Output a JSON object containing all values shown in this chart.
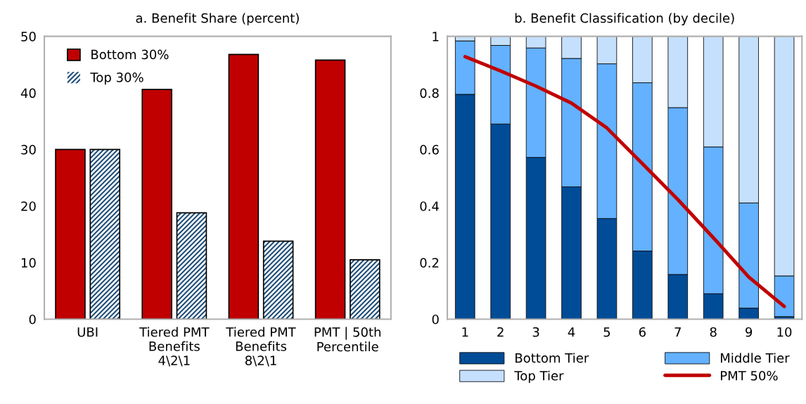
{
  "chart_data": [
    {
      "type": "bar",
      "title": "a. Benefit Share (percent)",
      "categories": [
        "UBI",
        "Tiered PMT\nBenefits\n4\\2\\1",
        "Tiered PMT\nBenefits\n8\\2\\1",
        "PMT | 50th\nPercentile"
      ],
      "series": [
        {
          "name": "Bottom 30%",
          "color": "#c00000",
          "values": [
            30,
            40.6,
            46.8,
            45.8
          ]
        },
        {
          "name": "Top 30%",
          "color": "#1f4e79",
          "values": [
            30,
            18.8,
            13.8,
            10.5
          ]
        }
      ],
      "ylim": [
        0,
        50
      ],
      "yticks": [
        0,
        10,
        20,
        30,
        40,
        50
      ],
      "legend": "top left",
      "grid": false
    },
    {
      "type": "bar",
      "stacked": true,
      "title": "b. Benefit Classification (by decile)",
      "categories": [
        "1",
        "2",
        "3",
        "4",
        "5",
        "6",
        "7",
        "8",
        "9",
        "10"
      ],
      "series": [
        {
          "name": "Bottom Tier",
          "color": "#004c97",
          "values": [
            0.795,
            0.69,
            0.572,
            0.468,
            0.356,
            0.241,
            0.158,
            0.09,
            0.039,
            0.009
          ]
        },
        {
          "name": "Middle Tier",
          "color": "#63b1ff",
          "values": [
            0.189,
            0.278,
            0.387,
            0.454,
            0.547,
            0.595,
            0.59,
            0.519,
            0.372,
            0.144
          ]
        },
        {
          "name": "Top Tier",
          "color": "#c5e0fd",
          "values": [
            0.016,
            0.032,
            0.041,
            0.078,
            0.097,
            0.164,
            0.252,
            0.391,
            0.589,
            0.847
          ]
        },
        {
          "name": "PMT 50%",
          "type": "line",
          "color": "#c00000",
          "values": [
            0.928,
            0.878,
            0.824,
            0.764,
            0.676,
            0.55,
            0.423,
            0.288,
            0.149,
            0.045
          ]
        }
      ],
      "ylim": [
        0,
        1
      ],
      "yticks": [
        0,
        0.2,
        0.4,
        0.6,
        0.8,
        1
      ],
      "legend": "bottom",
      "grid": false
    }
  ]
}
